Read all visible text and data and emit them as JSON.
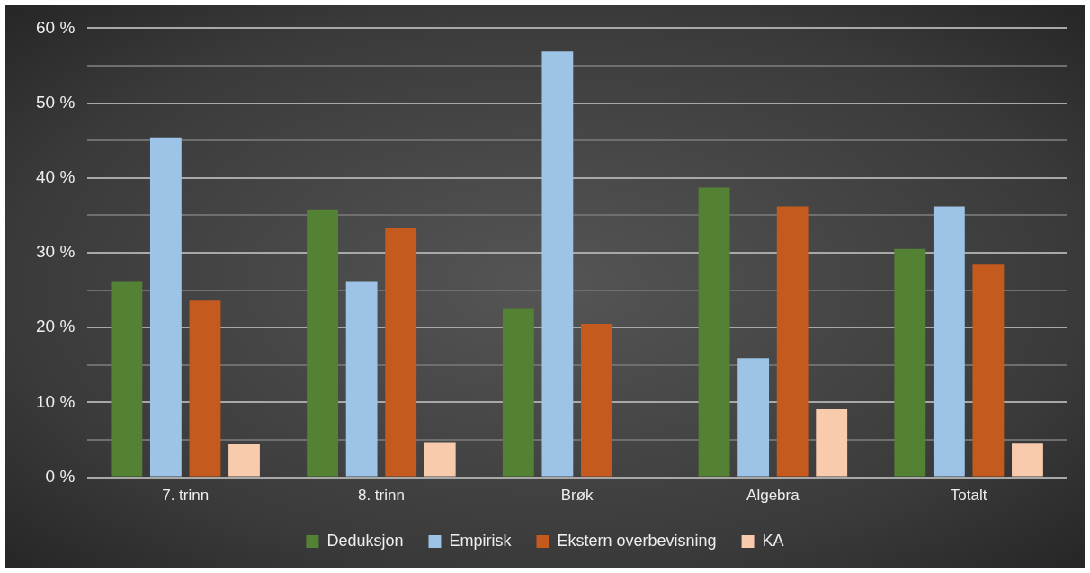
{
  "chart_data": {
    "type": "bar",
    "categories": [
      "7. trinn",
      "8. trinn",
      "Brøk",
      "Algebra",
      "Totalt"
    ],
    "series": [
      {
        "name": "Deduksjon",
        "color": "#548235",
        "values": [
          26.2,
          35.8,
          22.6,
          38.7,
          30.5
        ]
      },
      {
        "name": "Empirisk",
        "color": "#9dc3e6",
        "values": [
          45.4,
          26.2,
          56.9,
          15.9,
          36.2
        ]
      },
      {
        "name": "Ekstern overbevisning",
        "color": "#c55a1e",
        "values": [
          23.6,
          33.3,
          20.5,
          36.2,
          28.4
        ]
      },
      {
        "name": "KA",
        "color": "#f8cbad",
        "values": [
          4.4,
          4.7,
          null,
          9.1,
          4.5
        ]
      }
    ],
    "ylim": [
      0,
      60
    ],
    "yticks": [
      {
        "value": 0,
        "label": "0 %"
      },
      {
        "value": 5,
        "label": null
      },
      {
        "value": 10,
        "label": "10 %"
      },
      {
        "value": 15,
        "label": null
      },
      {
        "value": 20,
        "label": "20 %"
      },
      {
        "value": 25,
        "label": null
      },
      {
        "value": 30,
        "label": "30 %"
      },
      {
        "value": 35,
        "label": null
      },
      {
        "value": 40,
        "label": "40 %"
      },
      {
        "value": 45,
        "label": null
      },
      {
        "value": 50,
        "label": "50 %"
      },
      {
        "value": 55,
        "label": null
      },
      {
        "value": 60,
        "label": "60 %"
      }
    ],
    "grid": "y",
    "legend": "bottom"
  }
}
